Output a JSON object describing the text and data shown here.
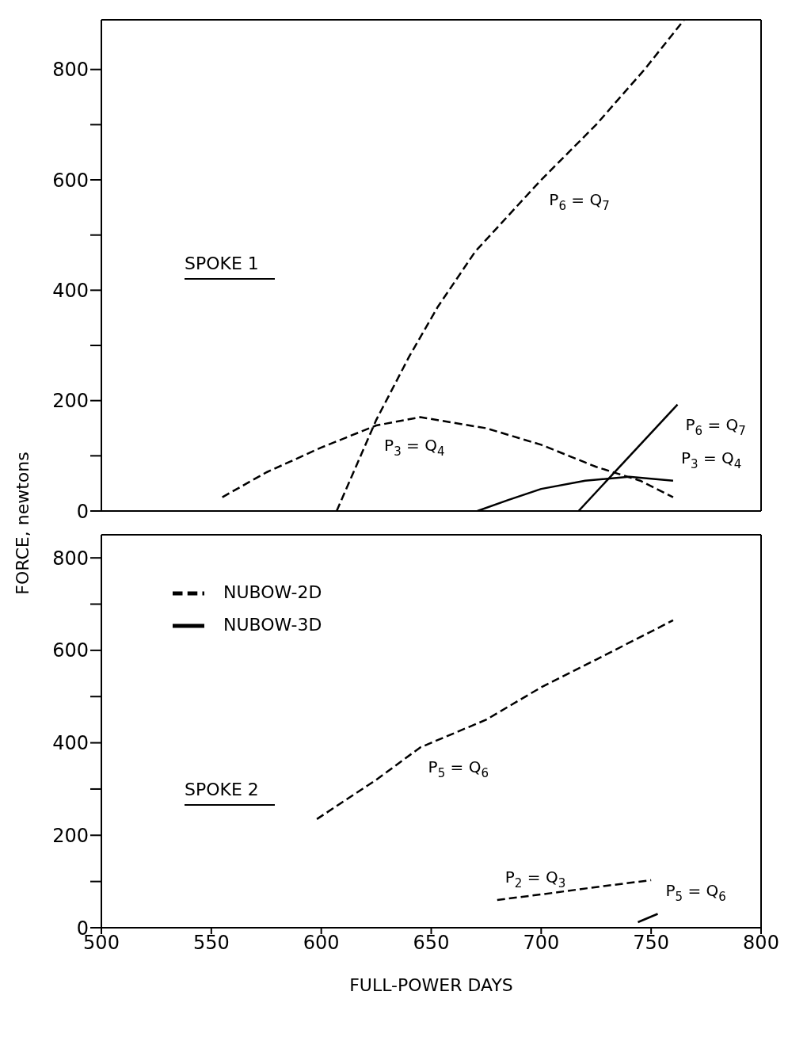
{
  "chart_data": [
    {
      "type": "line",
      "ylabel": "FORCE, newtons",
      "xlim": [
        500,
        800
      ],
      "xticks": [
        500,
        550,
        600,
        650,
        700,
        750,
        800
      ],
      "ylim": [
        0,
        890
      ],
      "yticks": [
        0,
        {
          "value": 100,
          "label": null
        },
        200,
        {
          "value": 300,
          "label": null
        },
        400,
        {
          "value": 500,
          "label": null
        },
        600,
        {
          "value": 700,
          "label": null
        },
        800
      ],
      "tick_labels": "y",
      "grid": false,
      "marker": "none",
      "series": [
        {
          "color": "#000000",
          "line_style": "dashed",
          "x": [
            607,
            625,
            640,
            653,
            670,
            700,
            725,
            747,
            765
          ],
          "values": [
            0,
            165,
            280,
            370,
            470,
            600,
            700,
            800,
            890
          ]
        },
        {
          "color": "#000000",
          "line_style": "dashed",
          "x": [
            555,
            575,
            600,
            625,
            645,
            675,
            700,
            725,
            745,
            760
          ],
          "values": [
            25,
            70,
            115,
            155,
            170,
            150,
            120,
            80,
            55,
            25
          ]
        },
        {
          "color": "#000000",
          "line_style": "solid",
          "x": [
            671,
            685,
            700,
            720,
            740,
            760
          ],
          "values": [
            0,
            20,
            40,
            55,
            62,
            55
          ]
        },
        {
          "color": "#000000",
          "line_style": "solid",
          "x": [
            717,
            762
          ],
          "values": [
            0,
            193
          ]
        }
      ],
      "annotations": [
        "SPOKE 1",
        {
          "text": "P$_{6}$ = Q$_{7}$",
          "x": 700,
          "y": 600
        },
        {
          "text": "P$_{3}$ = Q$_{4}$",
          "x": 625,
          "y": 155
        },
        {
          "text": "P$_{6}$ = Q$_{7}$",
          "x": 762,
          "y": 193
        },
        {
          "text": "P$_{3}$ = Q$_{4}$",
          "x": 760,
          "y": 55
        }
      ]
    },
    {
      "type": "line",
      "xlabel": "FULL-POWER DAYS",
      "xlim": [
        500,
        800
      ],
      "xticks": [
        500,
        550,
        600,
        650,
        700,
        750,
        800
      ],
      "ylim": [
        0,
        850
      ],
      "yticks": [
        0,
        {
          "value": 100,
          "label": null
        },
        200,
        {
          "value": 300,
          "label": null
        },
        400,
        {
          "value": 500,
          "label": null
        },
        600,
        {
          "value": 700,
          "label": null
        },
        800
      ],
      "grid": false,
      "legend": "top left",
      "marker": "none",
      "series": [
        {
          "name": "NUBOW-2D",
          "color": "#000000",
          "line_style": "dashed",
          "x": [
            598,
            625,
            645,
            675,
            700,
            725,
            760
          ],
          "values": [
            235,
            320,
            390,
            450,
            520,
            580,
            665
          ]
        },
        {
          "color": "#000000",
          "line_style": "dashed",
          "x": [
            680,
            700,
            725,
            750
          ],
          "values": [
            60,
            72,
            88,
            103
          ]
        },
        {
          "name": "NUBOW-3D",
          "color": "#000000",
          "line_style": "solid",
          "x": [
            744,
            753
          ],
          "values": [
            12,
            30
          ]
        }
      ],
      "annotations": [
        "SPOKE 2",
        {
          "text": "P$_{5}$ = Q$_{6}$",
          "x": 645,
          "y": 390
        },
        {
          "text": "P$_{2}$ = Q$_{3}$",
          "x": 680,
          "y": 60
        },
        {
          "text": "P$_{5}$ = Q$_{6}$",
          "x": 753,
          "y": 30
        }
      ]
    }
  ]
}
